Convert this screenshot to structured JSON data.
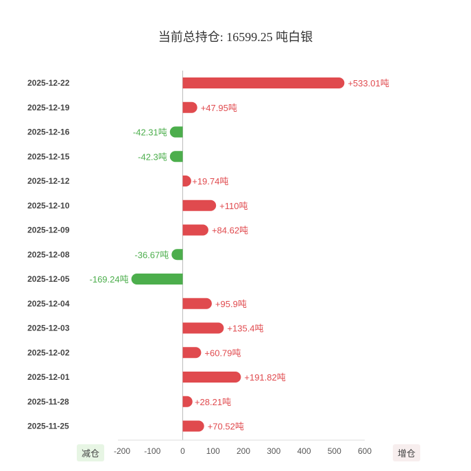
{
  "header": {
    "title": "当前总持仓:  16599.25 吨白银"
  },
  "badges": {
    "decrease": "减仓",
    "increase": "增仓"
  },
  "colors": {
    "positive": "#e04a4e",
    "negative": "#4cae4c",
    "axis": "#bbbbbb"
  },
  "chart_data": {
    "type": "bar",
    "orientation": "horizontal",
    "title": "当前总持仓:  16599.25 吨白银",
    "unit": "吨",
    "xlim": [
      -200,
      600
    ],
    "xticks": [
      -200,
      -100,
      0,
      100,
      200,
      300,
      400,
      500,
      600
    ],
    "categories": [
      "2025-12-22",
      "2025-12-19",
      "2025-12-16",
      "2025-12-15",
      "2025-12-12",
      "2025-12-10",
      "2025-12-09",
      "2025-12-08",
      "2025-12-05",
      "2025-12-04",
      "2025-12-03",
      "2025-12-02",
      "2025-12-01",
      "2025-11-28",
      "2025-11-25"
    ],
    "values": [
      533.01,
      47.95,
      -42.31,
      -42.3,
      19.74,
      110,
      84.62,
      -36.67,
      -169.24,
      95.9,
      135.4,
      60.79,
      191.82,
      28.21,
      70.52
    ],
    "labels": [
      "+533.01吨",
      "+47.95吨",
      "-42.31吨",
      "-42.3吨",
      "+19.74吨",
      "+110吨",
      "+84.62吨",
      "-36.67吨",
      "-169.24吨",
      "+95.9吨",
      "+135.4吨",
      "+60.79吨",
      "+191.82吨",
      "+28.21吨",
      "+70.52吨"
    ]
  }
}
